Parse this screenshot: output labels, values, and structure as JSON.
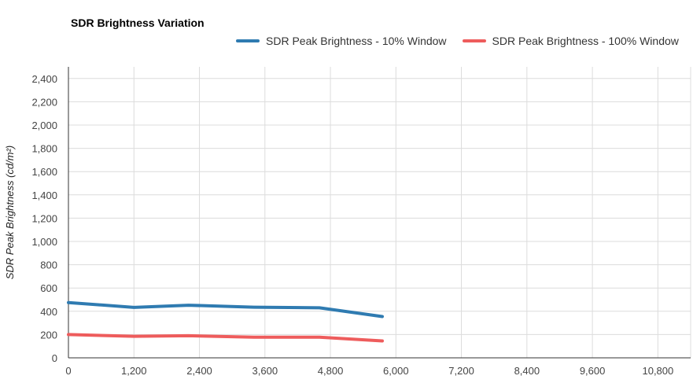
{
  "chart_data": {
    "type": "line",
    "title": "SDR Brightness Variation",
    "xlabel": "",
    "ylabel": "SDR Peak Brightness (cd/m²)",
    "xlim": [
      0,
      11400
    ],
    "ylim": [
      0,
      2500
    ],
    "xticks": [
      0,
      1200,
      2400,
      3600,
      4800,
      6000,
      7200,
      8400,
      9600,
      10800
    ],
    "xtick_labels": [
      "0",
      "1,200",
      "2,400",
      "3,600",
      "4,800",
      "6,000",
      "7,200",
      "8,400",
      "9,600",
      "10,800"
    ],
    "yticks": [
      0,
      200,
      400,
      600,
      800,
      1000,
      1200,
      1400,
      1600,
      1800,
      2000,
      2200,
      2400
    ],
    "ytick_labels": [
      "0",
      "200",
      "400",
      "600",
      "800",
      "1,000",
      "1,200",
      "1,400",
      "1,600",
      "1,800",
      "2,000",
      "2,200",
      "2,400"
    ],
    "grid": true,
    "legend_position": "top-right",
    "series": [
      {
        "name": "SDR Peak Brightness - 10% Window",
        "color": "#2f7bb1",
        "x": [
          0,
          1200,
          2200,
          3400,
          4600,
          5750
        ],
        "y": [
          475,
          433,
          452,
          435,
          430,
          355
        ]
      },
      {
        "name": "SDR Peak Brightness - 100% Window",
        "color": "#ee5c5c",
        "x": [
          0,
          1200,
          2200,
          3400,
          4600,
          5750
        ],
        "y": [
          200,
          185,
          190,
          178,
          178,
          145
        ]
      }
    ]
  }
}
